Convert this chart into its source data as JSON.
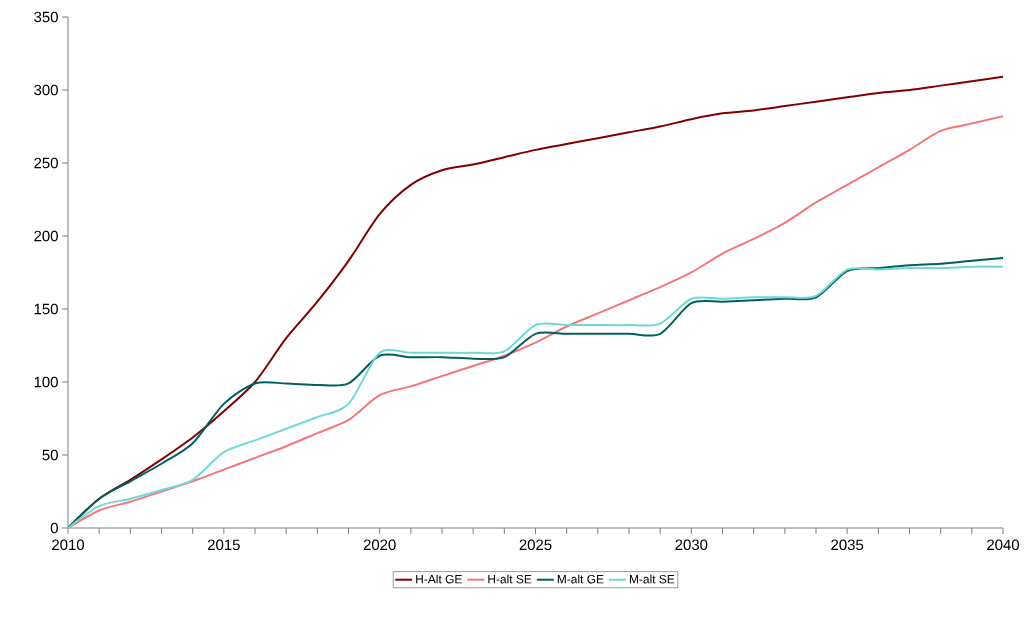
{
  "chart_data": {
    "type": "line",
    "x": [
      2010,
      2011,
      2012,
      2013,
      2014,
      2015,
      2016,
      2017,
      2018,
      2019,
      2020,
      2021,
      2022,
      2023,
      2024,
      2025,
      2026,
      2027,
      2028,
      2029,
      2030,
      2031,
      2032,
      2033,
      2034,
      2035,
      2036,
      2037,
      2038,
      2039,
      2040
    ],
    "xlim": [
      2010,
      2040
    ],
    "xticks": [
      2010,
      2015,
      2020,
      2025,
      2030,
      2035,
      2040
    ],
    "ylim": [
      0,
      350
    ],
    "yticks": [
      0,
      50,
      100,
      150,
      200,
      250,
      300,
      350
    ],
    "legend": "bottom",
    "grid": false,
    "marker": "none",
    "line_style": "solid",
    "series": [
      {
        "name": "H-Alt GE",
        "color": "#800000",
        "values": [
          0,
          20,
          33,
          47,
          62,
          80,
          100,
          130,
          155,
          183,
          215,
          235,
          245,
          249,
          254,
          259,
          263,
          267,
          271,
          275,
          280,
          284,
          286,
          289,
          292,
          295,
          298,
          300,
          303,
          306,
          309
        ]
      },
      {
        "name": "H-alt SE",
        "color": "#f4777a",
        "values": [
          0,
          12,
          18,
          25,
          32,
          40,
          48,
          56,
          65,
          74,
          91,
          97,
          104,
          111,
          118,
          127,
          138,
          147,
          156,
          165,
          175,
          188,
          198,
          209,
          223,
          235,
          247,
          259,
          272,
          277,
          282
        ]
      },
      {
        "name": "M-alt GE",
        "color": "#006060",
        "values": [
          0,
          20,
          32,
          44,
          58,
          85,
          99,
          99,
          98,
          99,
          118,
          117,
          117,
          116,
          117,
          133,
          133,
          133,
          133,
          133,
          154,
          155,
          156,
          157,
          158,
          176,
          178,
          180,
          181,
          183,
          185
        ]
      },
      {
        "name": "M-alt SE",
        "color": "#70d8d8",
        "values": [
          0,
          15,
          20,
          26,
          33,
          52,
          60,
          68,
          76,
          85,
          120,
          120,
          120,
          120,
          121,
          139,
          139,
          139,
          139,
          140,
          157,
          157,
          158,
          158,
          159,
          177,
          177,
          178,
          178,
          179,
          179
        ]
      }
    ]
  }
}
